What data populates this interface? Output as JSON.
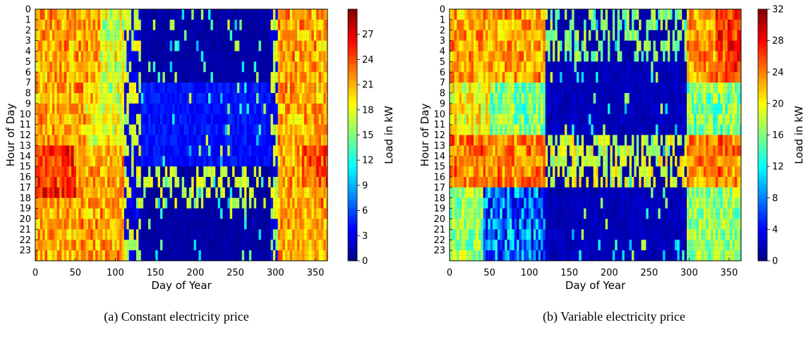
{
  "chart_data": [
    {
      "type": "heatmap",
      "caption": "(a) Constant electricity price",
      "xlabel": "Day of Year",
      "ylabel": "Hour of Day",
      "colorbar_label": "Load in kW",
      "x_ticks": [
        0,
        50,
        100,
        150,
        200,
        250,
        300,
        350
      ],
      "y_ticks": [
        0,
        1,
        2,
        3,
        4,
        5,
        6,
        7,
        8,
        9,
        10,
        11,
        12,
        13,
        14,
        15,
        16,
        17,
        18,
        19,
        20,
        21,
        22,
        23
      ],
      "xlim": [
        0,
        365
      ],
      "ylim": [
        0,
        24
      ],
      "colorbar_ticks": [
        0,
        3,
        6,
        9,
        12,
        15,
        18,
        21,
        24,
        27
      ],
      "colorbar_range": [
        0,
        30
      ],
      "colormap": "jet",
      "grid": true,
      "description_profile": "high load (~18-24 kW) in winter days 0-110 and 300-365, very low load (~0-3 kW) in summer days 130-295, mid-day band around hours 9-13 lightly loaded, hours 16-18 show scattered peaks"
    },
    {
      "type": "heatmap",
      "caption": "(b) Variable electricity price",
      "xlabel": "Day of Year",
      "ylabel": "Hour of Day",
      "colorbar_label": "Load in kW",
      "x_ticks": [
        0,
        50,
        100,
        150,
        200,
        250,
        300,
        350
      ],
      "y_ticks": [
        0,
        1,
        2,
        3,
        4,
        5,
        6,
        7,
        8,
        9,
        10,
        11,
        12,
        13,
        14,
        15,
        16,
        17,
        18,
        19,
        20,
        21,
        22,
        23
      ],
      "xlim": [
        0,
        365
      ],
      "ylim": [
        0,
        24
      ],
      "colorbar_ticks": [
        0,
        4,
        8,
        12,
        16,
        20,
        24,
        28,
        32
      ],
      "colorbar_range": [
        0,
        32
      ],
      "colormap": "jet",
      "grid": true,
      "description_profile": "load shifted to cheap hours: high load at night (hours 0-6) and early afternoon (hours 12-16) in winter, very low load at hours 17-23 and in summer"
    }
  ]
}
